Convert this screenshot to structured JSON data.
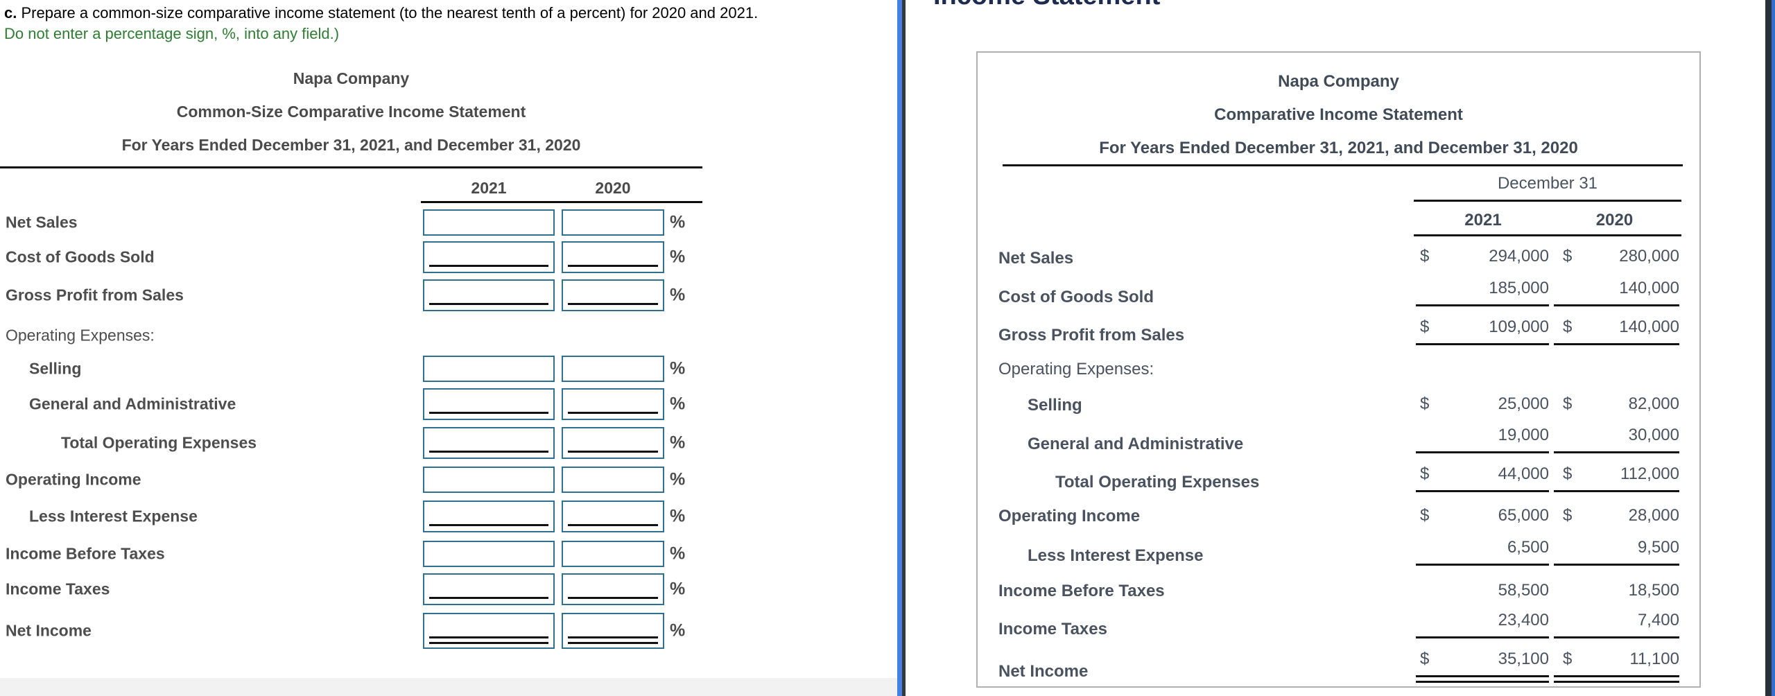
{
  "instructions": {
    "prefix": "c.",
    "line1": "Prepare a common-size comparative income statement (to the nearest tenth of a percent) for 2020 and 2021.",
    "line2": "Do not enter a percentage sign, %, into any field.)"
  },
  "left_statement": {
    "title1": "Napa Company",
    "title2": "Common-Size Comparative Income Statement",
    "title3": "For Years Ended December 31, 2021, and December 31, 2020",
    "col_headers": [
      "2021",
      "2020"
    ],
    "percent_symbol": "%",
    "rows": [
      {
        "label": "Net Sales",
        "indent": 0,
        "bold": true,
        "inputs": true,
        "rule": "none",
        "value_2021": "",
        "value_2020": ""
      },
      {
        "label": "Cost of Goods Sold",
        "indent": 0,
        "bold": true,
        "inputs": true,
        "rule": "single",
        "value_2021": "",
        "value_2020": ""
      },
      {
        "label": "Gross Profit from Sales",
        "indent": 0,
        "bold": true,
        "inputs": true,
        "rule": "single",
        "value_2021": "",
        "value_2020": ""
      },
      {
        "label": "Operating Expenses:",
        "indent": 0,
        "bold": false,
        "inputs": false,
        "rule": "none"
      },
      {
        "label": "Selling",
        "indent": 1,
        "bold": true,
        "inputs": true,
        "rule": "none",
        "value_2021": "",
        "value_2020": ""
      },
      {
        "label": "General and Administrative",
        "indent": 1,
        "bold": true,
        "inputs": true,
        "rule": "single",
        "value_2021": "",
        "value_2020": ""
      },
      {
        "label": "Total Operating Expenses",
        "indent": 2,
        "bold": true,
        "inputs": true,
        "rule": "single",
        "value_2021": "",
        "value_2020": ""
      },
      {
        "label": "Operating Income",
        "indent": 0,
        "bold": true,
        "inputs": true,
        "rule": "none",
        "value_2021": "",
        "value_2020": ""
      },
      {
        "label": "Less Interest Expense",
        "indent": 1,
        "bold": true,
        "inputs": true,
        "rule": "single",
        "value_2021": "",
        "value_2020": ""
      },
      {
        "label": "Income Before Taxes",
        "indent": 0,
        "bold": true,
        "inputs": true,
        "rule": "none",
        "value_2021": "",
        "value_2020": ""
      },
      {
        "label": "Income Taxes",
        "indent": 0,
        "bold": true,
        "inputs": true,
        "rule": "single",
        "value_2021": "",
        "value_2020": ""
      },
      {
        "label": "Net Income",
        "indent": 0,
        "bold": true,
        "inputs": true,
        "rule": "double",
        "value_2021": "",
        "value_2020": ""
      }
    ]
  },
  "right_statement": {
    "clipped_heading": "Income Statement",
    "title1": "Napa Company",
    "title2": "Comparative Income Statement",
    "title3": "For Years Ended December 31, 2021, and December 31, 2020",
    "date_header": "December 31",
    "col_headers": [
      "2021",
      "2020"
    ],
    "labels": [
      {
        "label": "Net Sales",
        "indent": 0,
        "bold": true
      },
      {
        "label": "Cost of Goods Sold",
        "indent": 0,
        "bold": true
      },
      {
        "label": "Gross Profit from Sales",
        "indent": 0,
        "bold": true
      },
      {
        "label": "Operating Expenses:",
        "indent": 0,
        "bold": false
      },
      {
        "label": "Selling",
        "indent": 1,
        "bold": true
      },
      {
        "label": "General and Administrative",
        "indent": 1,
        "bold": true
      },
      {
        "label": "Total Operating Expenses",
        "indent": 2,
        "bold": true
      },
      {
        "label": "Operating Income",
        "indent": 0,
        "bold": true
      },
      {
        "label": "Less Interest Expense",
        "indent": 1,
        "bold": true
      },
      {
        "label": "Income Before Taxes",
        "indent": 0,
        "bold": true
      },
      {
        "label": "Income Taxes",
        "indent": 0,
        "bold": true
      },
      {
        "label": "Net Income",
        "indent": 0,
        "bold": true
      }
    ],
    "values": [
      {
        "account": "Net Sales",
        "d1": "$",
        "v1": "294,000",
        "d2": "$",
        "v2": "280,000",
        "rule": "none"
      },
      {
        "account": "Cost of Goods Sold",
        "d1": "",
        "v1": "185,000",
        "d2": "",
        "v2": "140,000",
        "rule": "single"
      },
      {
        "account": "Gross Profit from Sales",
        "d1": "$",
        "v1": "109,000",
        "d2": "$",
        "v2": "140,000",
        "rule": "single"
      },
      {
        "account": "Selling",
        "d1": "$",
        "v1": "25,000",
        "d2": "$",
        "v2": "82,000",
        "rule": "none"
      },
      {
        "account": "General and Administrative",
        "d1": "",
        "v1": "19,000",
        "d2": "",
        "v2": "30,000",
        "rule": "single"
      },
      {
        "account": "Total Operating Expenses",
        "d1": "$",
        "v1": "44,000",
        "d2": "$",
        "v2": "112,000",
        "rule": "single"
      },
      {
        "account": "Operating Income",
        "d1": "$",
        "v1": "65,000",
        "d2": "$",
        "v2": "28,000",
        "rule": "none"
      },
      {
        "account": "Less Interest Expense",
        "d1": "",
        "v1": "6,500",
        "d2": "",
        "v2": "9,500",
        "rule": "single"
      },
      {
        "account": "Income Before Taxes",
        "d1": "",
        "v1": "58,500",
        "d2": "",
        "v2": "18,500",
        "rule": "none"
      },
      {
        "account": "Income Taxes",
        "d1": "",
        "v1": "23,400",
        "d2": "",
        "v2": "7,400",
        "rule": "single"
      },
      {
        "account": "Net Income",
        "d1": "$",
        "v1": "35,100",
        "d2": "$",
        "v2": "11,100",
        "rule": "double"
      }
    ]
  }
}
